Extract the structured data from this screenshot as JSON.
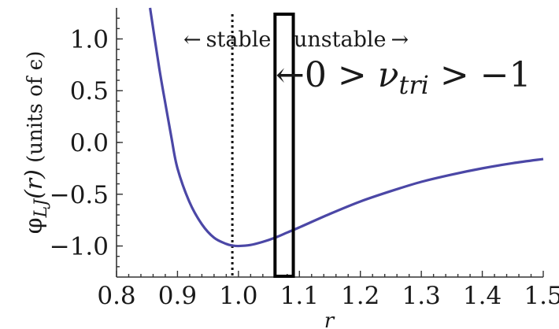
{
  "chart_data": {
    "type": "line",
    "xlabel": "r",
    "ylabel": {
      "function_symbol": "φ",
      "subscript": "LJ",
      "argument": "(r)",
      "units": " (units of ϵ)"
    },
    "xlim": [
      0.8,
      1.5
    ],
    "ylim": [
      -1.3,
      1.3
    ],
    "x_ticks": [
      "0.8",
      "0.9",
      "1.0",
      "1.1",
      "1.2",
      "1.3",
      "1.4",
      "1.5"
    ],
    "y_ticks": [
      "1.0",
      "0.5",
      "0.0",
      "−0.5",
      "−1.0"
    ],
    "y_tick_values": [
      1.0,
      0.5,
      0.0,
      -0.5,
      -1.0
    ],
    "x_tick_values": [
      0.8,
      0.9,
      1.0,
      1.1,
      1.2,
      1.3,
      1.4,
      1.5
    ],
    "series": [
      {
        "color": "#4b47a6",
        "x": [
          0.855,
          0.87,
          0.88,
          0.89,
          0.9,
          0.92,
          0.94,
          0.96,
          0.98,
          0.99,
          1.0,
          1.02,
          1.04,
          1.06,
          1.08,
          1.1,
          1.15,
          1.2,
          1.25,
          1.3,
          1.35,
          1.4,
          1.45,
          1.5
        ],
        "y": [
          1.3,
          0.72,
          0.38,
          0.05,
          -0.25,
          -0.58,
          -0.79,
          -0.92,
          -0.98,
          -0.995,
          -1.0,
          -0.99,
          -0.96,
          -0.92,
          -0.87,
          -0.82,
          -0.69,
          -0.57,
          -0.47,
          -0.38,
          -0.31,
          -0.25,
          -0.2,
          -0.16
        ]
      }
    ],
    "stability_line": {
      "x": 0.99,
      "style": "dotted"
    },
    "highlight_box": {
      "x_range": [
        1.06,
        1.09
      ],
      "y_range": [
        -1.3,
        1.3
      ]
    },
    "annotations": {
      "stable_arrow": "←",
      "stable_label": "stable",
      "unstable_label": "unstable",
      "unstable_arrow": "→",
      "nu_arrow": "←",
      "nu_prefix": "0 > ",
      "nu_symbol": "ν",
      "nu_subscript": "tri",
      "nu_suffix": " > −1"
    }
  }
}
